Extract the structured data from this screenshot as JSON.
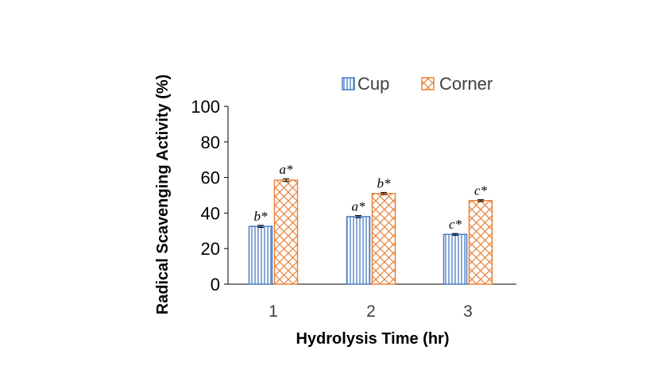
{
  "chart_data": {
    "type": "bar",
    "xlabel": "Hydrolysis Time (hr)",
    "ylabel": "Radical Scavenging Activity (%)",
    "categories": [
      "1",
      "2",
      "3"
    ],
    "ylim": [
      0,
      100
    ],
    "yticks": [
      0,
      20,
      40,
      60,
      80,
      100
    ],
    "grid": false,
    "legend_position": "top",
    "series": [
      {
        "name": "Cup",
        "values": [
          32.5,
          38.0,
          28.0
        ],
        "errors": [
          0.6,
          0.6,
          0.5
        ],
        "labels": [
          "b*",
          "a*",
          "c*"
        ],
        "color": "#4a7cc1",
        "pattern": "vertical-lines"
      },
      {
        "name": "Corner",
        "values": [
          58.5,
          51.0,
          47.0
        ],
        "errors": [
          0.8,
          0.6,
          0.5
        ],
        "labels": [
          "a*",
          "b*",
          "c*"
        ],
        "color": "#e8823a",
        "pattern": "crosshatch"
      }
    ]
  }
}
